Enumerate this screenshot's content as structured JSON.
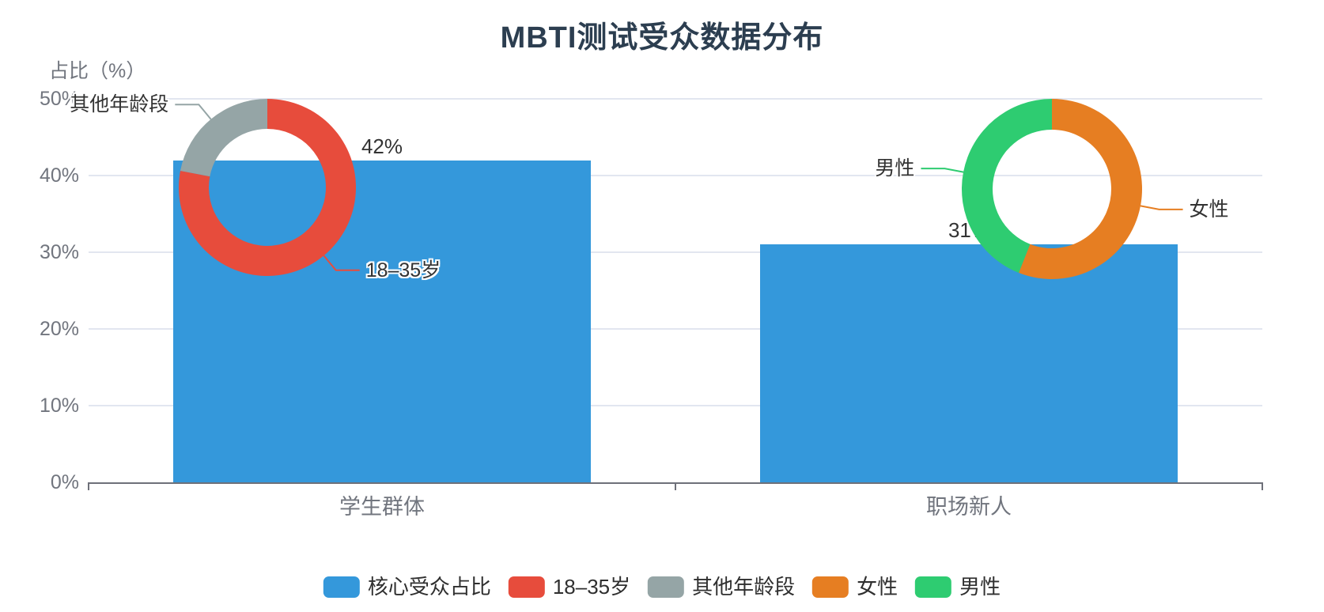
{
  "chart_data": {
    "type": "bar",
    "title": "MBTI测试受众数据分布",
    "ylabel": "占比（%）",
    "ylim": [
      0,
      50
    ],
    "yticks": [
      0,
      10,
      20,
      30,
      40,
      50
    ],
    "ytick_labels": [
      "0%",
      "10%",
      "20%",
      "30%",
      "40%",
      "50%"
    ],
    "categories": [
      "学生群体",
      "职场新人"
    ],
    "grid": true,
    "legend_position": "bottom",
    "bar_series": {
      "name": "核心受众占比",
      "values": [
        42,
        31
      ],
      "data_labels": [
        "42%",
        "31%"
      ],
      "color": "#3498db"
    },
    "pies": [
      {
        "anchor_category": "学生群体",
        "type": "donut",
        "slices": [
          {
            "name": "18–35岁",
            "value": 78,
            "color": "#e74c3c"
          },
          {
            "name": "其他年龄段",
            "value": 22,
            "color": "#95a5a6"
          }
        ]
      },
      {
        "anchor_category": "职场新人",
        "type": "donut",
        "slices": [
          {
            "name": "女性",
            "value": 56,
            "color": "#e67e22"
          },
          {
            "name": "男性",
            "value": 44,
            "color": "#2ecc71"
          }
        ]
      }
    ],
    "legend": [
      {
        "label": "核心受众占比",
        "color": "#3498db"
      },
      {
        "label": "18–35岁",
        "color": "#e74c3c"
      },
      {
        "label": "其他年龄段",
        "color": "#95a5a6"
      },
      {
        "label": "女性",
        "color": "#e67e22"
      },
      {
        "label": "男性",
        "color": "#2ecc71"
      }
    ],
    "colors": {
      "title_text": "#2c3e50",
      "axis_text": "#71757e",
      "label_text": "#333333",
      "axis_line": "#6e7079",
      "gridline": "#e2e6f0"
    }
  }
}
